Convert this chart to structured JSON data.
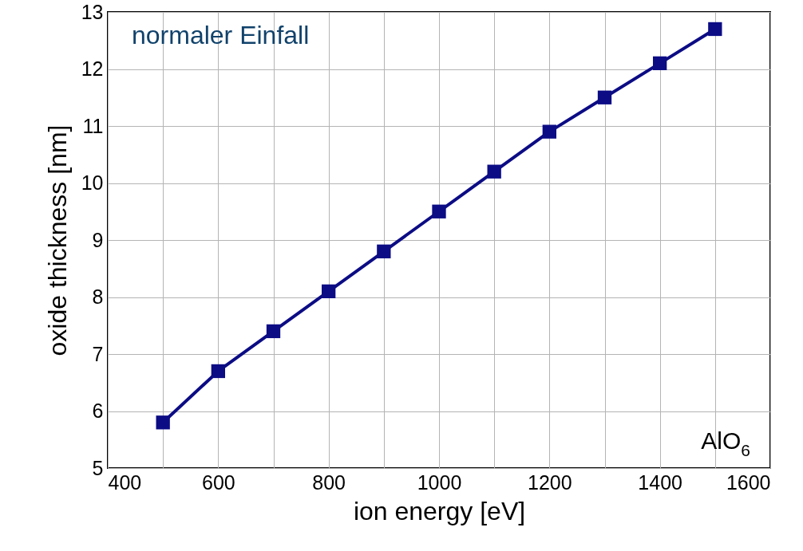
{
  "chart_data": {
    "type": "line",
    "xlabel": "ion energy [eV]",
    "ylabel": "oxide thickness [nm]",
    "x": [
      500,
      600,
      700,
      800,
      900,
      1000,
      1100,
      1200,
      1300,
      1400,
      1500
    ],
    "series": [
      {
        "color": "#0c0c85",
        "values": [
          5.8,
          6.7,
          7.4,
          8.1,
          8.8,
          9.5,
          10.2,
          10.9,
          11.5,
          12.1,
          12.7
        ]
      }
    ],
    "xlim": [
      400,
      1600
    ],
    "xticks": [
      400,
      {
        "value": 500,
        "label": null
      },
      600,
      {
        "value": 700,
        "label": null
      },
      800,
      {
        "value": 900,
        "label": null
      },
      1000,
      {
        "value": 1100,
        "label": null
      },
      1200,
      {
        "value": 1300,
        "label": null
      },
      1400,
      {
        "value": 1500,
        "label": null
      },
      1600
    ],
    "ylim": [
      5,
      13
    ],
    "yticks": [
      5,
      6,
      7,
      8,
      9,
      10,
      11,
      12,
      13
    ],
    "grid": true,
    "marker": "square",
    "line_style": "solid",
    "annotations": [
      "normaler Einfall",
      "AlO$_{6}$"
    ]
  }
}
